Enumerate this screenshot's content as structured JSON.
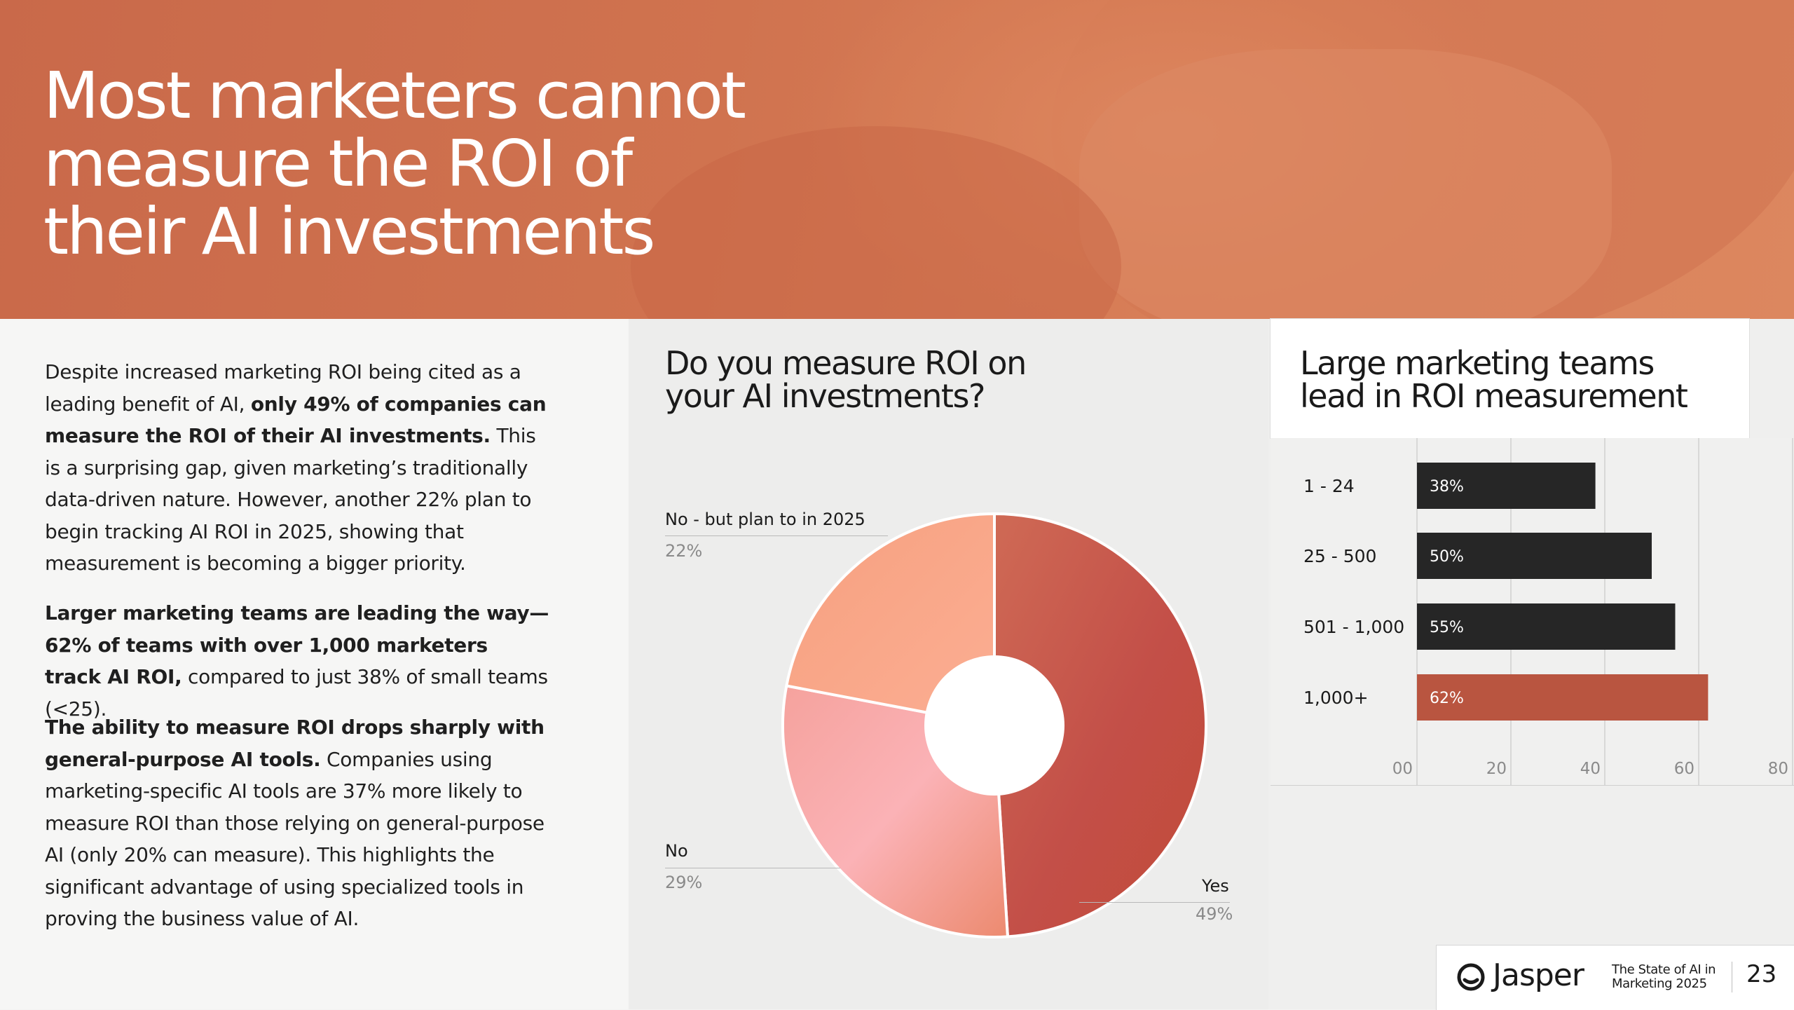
{
  "hero": {
    "title_lines": [
      "Most marketers cannot",
      "measure the ROI of",
      "their AI investments"
    ]
  },
  "body": {
    "p1": [
      {
        "text": "Despite increased marketing ROI being cited as a leading benefit of AI, ",
        "bold": false
      },
      {
        "text": "only 49% of companies can measure the ROI of their AI investments.",
        "bold": true
      },
      {
        "text": " This is a surprising gap, given marketing’s traditionally data-driven nature. However, another 22% plan to begin tracking AI ROI in 2025, showing that measurement is becoming a bigger priority.",
        "bold": false
      }
    ],
    "p2": [
      {
        "text": "Larger marketing teams are leading the way— 62% of teams with over 1,000 marketers track AI ROI,",
        "bold": true
      },
      {
        "text": " compared to just 38% of small teams (<25).",
        "bold": false
      }
    ],
    "p3": [
      {
        "text": "The ability to measure ROI drops sharply with general-purpose AI tools.",
        "bold": true
      },
      {
        "text": " Companies using marketing-specific AI tools are 37% more likely to measure ROI than those relying on general-purpose AI (only 20% can measure). This highlights the significant advantage of using specialized tools in proving the business value of AI.",
        "bold": false
      }
    ]
  },
  "chart_data": [
    {
      "type": "pie",
      "title": "Do you measure ROI on your AI investments?",
      "title_lines": [
        "Do you measure ROI on",
        "your AI investments?"
      ],
      "donut": true,
      "slices": [
        {
          "label": "Yes",
          "value": 49,
          "display": "49%",
          "color": "#c85a45"
        },
        {
          "label": "No",
          "value": 29,
          "display": "29%",
          "color": "#f4a8a2"
        },
        {
          "label": "No - but plan to in 2025",
          "value": 22,
          "display": "22%",
          "color": "#f79a78"
        }
      ]
    },
    {
      "type": "bar",
      "orientation": "horizontal",
      "title": "Large marketing teams lead in ROI measurement",
      "title_lines": [
        "Large marketing teams",
        "lead in ROI measurement"
      ],
      "categories": [
        "1 - 24",
        "25 - 500",
        "501 - 1,000",
        "1,000+"
      ],
      "values": [
        38,
        50,
        55,
        62
      ],
      "value_labels": [
        "38%",
        "50%",
        "55%",
        "62%"
      ],
      "bar_colors": [
        "#262626",
        "#262626",
        "#262626",
        "#b95540"
      ],
      "x_ticks": [
        "00",
        "20",
        "40",
        "60",
        "80"
      ],
      "xlim": [
        0,
        80
      ],
      "grid": true
    }
  ],
  "footer": {
    "brand": "Jasper",
    "report_title_lines": [
      "The State of AI in",
      "Marketing 2025"
    ],
    "page_number": "23"
  }
}
